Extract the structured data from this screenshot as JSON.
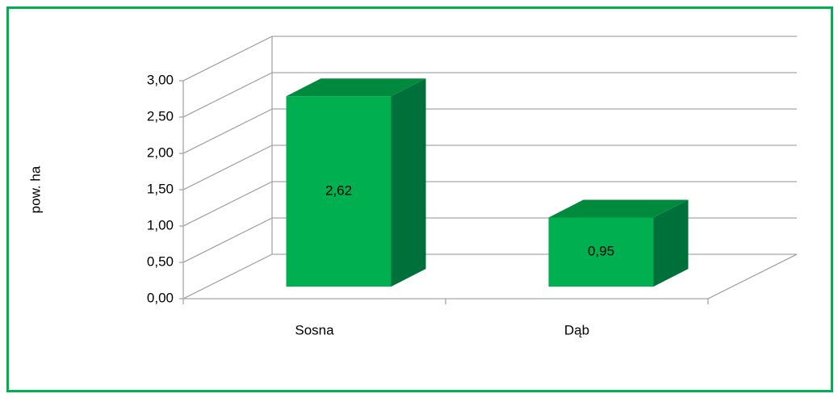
{
  "chart_data": {
    "type": "bar3d",
    "categories": [
      "Sosna",
      "Dąb"
    ],
    "values": [
      2.62,
      0.95
    ],
    "value_labels": [
      "2,62",
      "0,95"
    ],
    "ylabel": "pow. ha",
    "ylim": [
      0,
      3
    ],
    "yticks": [
      {
        "value": 0,
        "label": "0,00"
      },
      {
        "value": 0.5,
        "label": "0,50"
      },
      {
        "value": 1,
        "label": "1,00"
      },
      {
        "value": 1.5,
        "label": "1,50"
      },
      {
        "value": 2,
        "label": "2,00"
      },
      {
        "value": 2.5,
        "label": "2,50"
      },
      {
        "value": 3,
        "label": "3,00"
      }
    ],
    "color": "#00b050",
    "grid": true
  }
}
